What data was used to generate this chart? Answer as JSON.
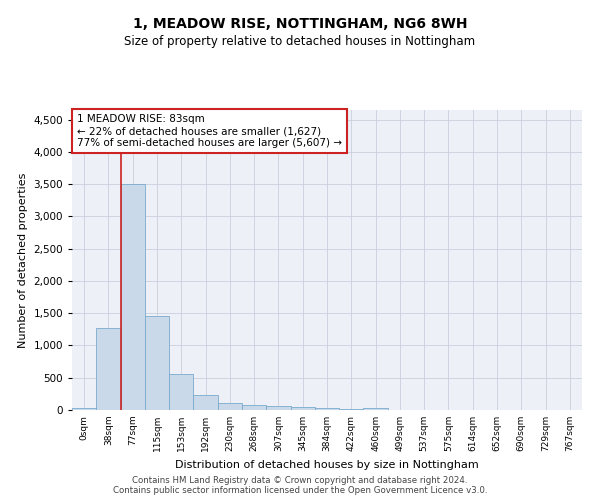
{
  "title1": "1, MEADOW RISE, NOTTINGHAM, NG6 8WH",
  "title2": "Size of property relative to detached houses in Nottingham",
  "xlabel": "Distribution of detached houses by size in Nottingham",
  "ylabel": "Number of detached properties",
  "bar_labels": [
    "0sqm",
    "38sqm",
    "77sqm",
    "115sqm",
    "153sqm",
    "192sqm",
    "230sqm",
    "268sqm",
    "307sqm",
    "345sqm",
    "384sqm",
    "422sqm",
    "460sqm",
    "499sqm",
    "537sqm",
    "575sqm",
    "614sqm",
    "652sqm",
    "690sqm",
    "729sqm",
    "767sqm"
  ],
  "bar_values": [
    30,
    1270,
    3500,
    1460,
    560,
    230,
    115,
    85,
    55,
    45,
    25,
    10,
    30,
    0,
    0,
    0,
    0,
    0,
    0,
    0,
    0
  ],
  "bar_color": "#c9d9ea",
  "bar_edgecolor": "#7aaace",
  "grid_color": "#c8d0dc",
  "background_color": "#edf1f7",
  "red_line_color": "#cc2222",
  "marker_label": "1 MEADOW RISE: 83sqm",
  "annotation_line1": "← 22% of detached houses are smaller (1,627)",
  "annotation_line2": "77% of semi-detached houses are larger (5,607) →",
  "annotation_box_facecolor": "#ffffff",
  "annotation_box_edgecolor": "#cc2222",
  "ylim": [
    0,
    4650
  ],
  "yticks": [
    0,
    500,
    1000,
    1500,
    2000,
    2500,
    3000,
    3500,
    4000,
    4500
  ],
  "footer1": "Contains HM Land Registry data © Crown copyright and database right 2024.",
  "footer2": "Contains public sector information licensed under the Open Government Licence v3.0."
}
